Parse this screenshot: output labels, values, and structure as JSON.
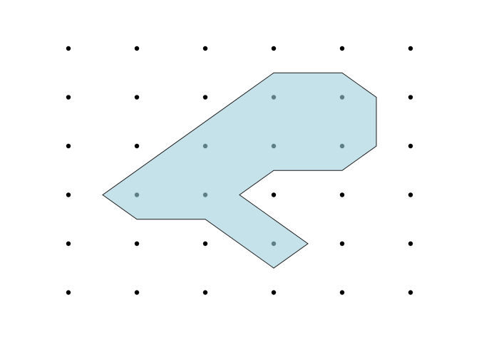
{
  "diagram": {
    "type": "dot-grid-polygon",
    "grid": {
      "columns": 6,
      "rows": 6
    },
    "colors": {
      "background": "#ffffff",
      "dot": "#000000",
      "shape_fill": "#c5e2ea",
      "shape_stroke": "#1a1a1a",
      "dot_inside": "#5f7f86"
    },
    "polygon_vertices": [
      [
        3,
        0.5
      ],
      [
        4,
        0.5
      ],
      [
        4.5,
        1
      ],
      [
        4.5,
        2
      ],
      [
        4,
        2.5
      ],
      [
        3,
        2.5
      ],
      [
        2.5,
        3
      ],
      [
        3.5,
        4
      ],
      [
        3,
        4.5
      ],
      [
        2,
        3.5
      ],
      [
        1,
        3.5
      ],
      [
        0.5,
        3
      ]
    ],
    "dots_inside": [
      [
        3,
        1
      ],
      [
        4,
        1
      ],
      [
        2,
        2
      ],
      [
        3,
        2
      ],
      [
        4,
        2
      ],
      [
        1,
        3
      ],
      [
        2,
        3
      ],
      [
        3,
        4
      ]
    ]
  }
}
